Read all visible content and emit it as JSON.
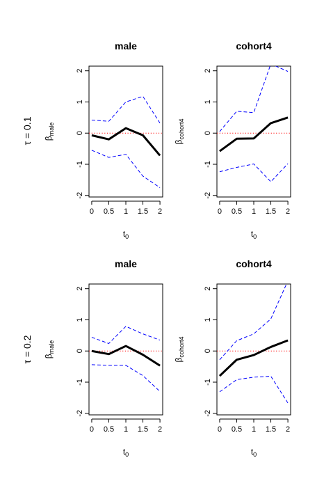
{
  "rows": [
    {
      "label": "τ = 0.1"
    },
    {
      "label": "τ = 0.2"
    }
  ],
  "chart_data": [
    {
      "type": "line",
      "title": "male",
      "xlabel": {
        "main": "t",
        "sub": "0"
      },
      "ylabel": {
        "main": "β",
        "sub": "male"
      },
      "x": [
        0,
        0.5,
        1,
        1.5,
        2
      ],
      "xticks": [
        "0",
        "0.5",
        "1",
        "1.5",
        "2"
      ],
      "yticks": [
        "-2",
        "-1",
        "0",
        "1",
        "2"
      ],
      "xlim": [
        -0.08,
        2.08
      ],
      "ylim": [
        -2.05,
        2.15
      ],
      "series": [
        {
          "role": "estimate",
          "values": [
            -0.07,
            -0.2,
            0.16,
            -0.07,
            -0.72
          ],
          "color": "#000000",
          "style": "solid"
        },
        {
          "role": "upper",
          "values": [
            0.42,
            0.38,
            1.0,
            1.18,
            0.32
          ],
          "color": "#0000ff",
          "style": "dashed"
        },
        {
          "role": "lower",
          "values": [
            -0.55,
            -0.78,
            -0.68,
            -1.38,
            -1.75
          ],
          "color": "#0000ff",
          "style": "dashed"
        }
      ],
      "reference_line": {
        "y": 0,
        "color": "#ff0000",
        "style": "dotted"
      }
    },
    {
      "type": "line",
      "title": "cohort4",
      "xlabel": {
        "main": "t",
        "sub": "0"
      },
      "ylabel": {
        "main": "β",
        "sub": "cohort4"
      },
      "x": [
        0,
        0.5,
        1,
        1.5,
        2
      ],
      "xticks": [
        "0",
        "0.5",
        "1",
        "1.5",
        "2"
      ],
      "yticks": [
        "-2",
        "-1",
        "0",
        "1",
        "2"
      ],
      "xlim": [
        -0.08,
        2.08
      ],
      "ylim": [
        -2.05,
        2.15
      ],
      "series": [
        {
          "role": "estimate",
          "values": [
            -0.58,
            -0.18,
            -0.17,
            0.32,
            0.5
          ],
          "color": "#000000",
          "style": "solid"
        },
        {
          "role": "upper",
          "values": [
            0.05,
            0.7,
            0.66,
            2.22,
            1.98
          ],
          "color": "#0000ff",
          "style": "dashed"
        },
        {
          "role": "lower",
          "values": [
            -1.24,
            -1.1,
            -0.99,
            -1.56,
            -0.98
          ],
          "color": "#0000ff",
          "style": "dashed"
        }
      ],
      "reference_line": {
        "y": 0,
        "color": "#ff0000",
        "style": "dotted"
      }
    },
    {
      "type": "line",
      "title": "male",
      "xlabel": {
        "main": "t",
        "sub": "0"
      },
      "ylabel": {
        "main": "β",
        "sub": "male"
      },
      "x": [
        0,
        0.5,
        1,
        1.5,
        2
      ],
      "xticks": [
        "0",
        "0.5",
        "1",
        "1.5",
        "2"
      ],
      "yticks": [
        "-2",
        "-1",
        "0",
        "1",
        "2"
      ],
      "xlim": [
        -0.08,
        2.08
      ],
      "ylim": [
        -2.05,
        2.15
      ],
      "series": [
        {
          "role": "estimate",
          "values": [
            0.0,
            -0.1,
            0.16,
            -0.12,
            -0.47
          ],
          "color": "#000000",
          "style": "solid"
        },
        {
          "role": "upper",
          "values": [
            0.44,
            0.24,
            0.79,
            0.55,
            0.35
          ],
          "color": "#0000ff",
          "style": "dashed"
        },
        {
          "role": "lower",
          "values": [
            -0.44,
            -0.46,
            -0.46,
            -0.79,
            -1.3
          ],
          "color": "#0000ff",
          "style": "dashed"
        }
      ],
      "reference_line": {
        "y": 0,
        "color": "#ff0000",
        "style": "dotted"
      }
    },
    {
      "type": "line",
      "title": "cohort4",
      "xlabel": {
        "main": "t",
        "sub": "0"
      },
      "ylabel": {
        "main": "β",
        "sub": "cohort4"
      },
      "x": [
        0,
        0.5,
        1,
        1.5,
        2
      ],
      "xticks": [
        "0",
        "0.5",
        "1",
        "1.5",
        "2"
      ],
      "yticks": [
        "-2",
        "-1",
        "0",
        "1",
        "2"
      ],
      "xlim": [
        -0.08,
        2.08
      ],
      "ylim": [
        -2.05,
        2.15
      ],
      "series": [
        {
          "role": "estimate",
          "values": [
            -0.8,
            -0.28,
            -0.13,
            0.13,
            0.34
          ],
          "color": "#000000",
          "style": "solid"
        },
        {
          "role": "upper",
          "values": [
            -0.28,
            0.33,
            0.55,
            1.03,
            2.25
          ],
          "color": "#0000ff",
          "style": "dashed"
        },
        {
          "role": "lower",
          "values": [
            -1.31,
            -0.92,
            -0.84,
            -0.81,
            -1.67
          ],
          "color": "#0000ff",
          "style": "dashed"
        }
      ],
      "reference_line": {
        "y": 0,
        "color": "#ff0000",
        "style": "dotted"
      }
    }
  ]
}
